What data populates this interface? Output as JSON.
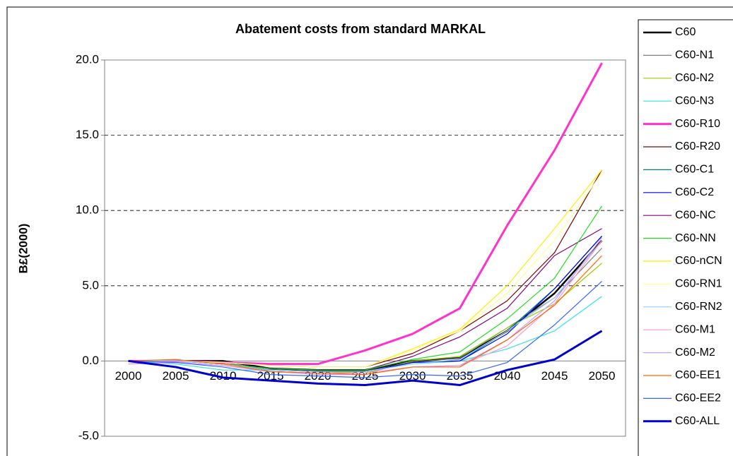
{
  "chart_data": {
    "type": "line",
    "title": "Abatement costs from standard MARKAL",
    "y_label": "B£(2000)",
    "categories": [
      "2000",
      "2005",
      "2010",
      "2015",
      "2020",
      "2025",
      "2030",
      "2035",
      "2040",
      "2045",
      "2050"
    ],
    "ylim": [
      -5,
      20
    ],
    "yticks": [
      {
        "value": -5,
        "label": "-5.0"
      },
      {
        "value": 0,
        "label": "0.0"
      },
      {
        "value": 5,
        "label": "5.0"
      },
      {
        "value": 10,
        "label": "10.0"
      },
      {
        "value": 15,
        "label": "15.0"
      },
      {
        "value": 20,
        "label": "20.0"
      }
    ],
    "grid": true,
    "legend": "right",
    "series": [
      {
        "name": "C60",
        "color": "#000000",
        "line_width": 2.5,
        "values": [
          0,
          0,
          0,
          -0.5,
          -0.6,
          -0.6,
          0,
          0.2,
          2,
          4.5,
          8
        ]
      },
      {
        "name": "C60-N1",
        "color": "#808080",
        "line_width": 1.2,
        "values": [
          0,
          0,
          -0.1,
          -0.6,
          -0.7,
          -0.8,
          -0.1,
          0.2,
          2.2,
          4.2,
          7.5
        ]
      },
      {
        "name": "C60-N2",
        "color": "#99cc00",
        "line_width": 1.2,
        "values": [
          0,
          0,
          -0.2,
          -0.6,
          -0.7,
          -0.8,
          0,
          0.3,
          2.2,
          3.8,
          6.5
        ]
      },
      {
        "name": "C60-N3",
        "color": "#33e0f0",
        "line_width": 1.2,
        "values": [
          0,
          -0.2,
          -0.6,
          -0.6,
          -0.7,
          -0.7,
          -0.2,
          0,
          0.8,
          2,
          4.3
        ]
      },
      {
        "name": "C60-R10",
        "color": "#ff33cc",
        "line_width": 3,
        "values": [
          0,
          0,
          -0.1,
          -0.2,
          -0.2,
          0.7,
          1.8,
          3.5,
          9,
          14,
          19.8
        ]
      },
      {
        "name": "C60-R20",
        "color": "#800000",
        "line_width": 1.2,
        "values": [
          0,
          0,
          -0.1,
          -0.3,
          -0.4,
          -0.4,
          0.5,
          2,
          4,
          7.2,
          12.7
        ]
      },
      {
        "name": "C60-C1",
        "color": "#008080",
        "line_width": 1.2,
        "values": [
          0,
          0,
          -0.2,
          -0.6,
          -0.7,
          -0.7,
          -0.1,
          0,
          2,
          4.8,
          8.3
        ]
      },
      {
        "name": "C60-C2",
        "color": "#0000ff",
        "line_width": 1.2,
        "values": [
          0,
          0,
          -0.2,
          -0.6,
          -0.7,
          -0.7,
          -0.1,
          0,
          1.8,
          4.8,
          8.3
        ]
      },
      {
        "name": "C60-NC",
        "color": "#800080",
        "line_width": 1.2,
        "values": [
          0,
          0,
          -0.2,
          -0.5,
          -0.6,
          -0.6,
          0.3,
          1.6,
          3.5,
          7,
          8.8
        ]
      },
      {
        "name": "C60-NN",
        "color": "#22dd22",
        "line_width": 1.2,
        "values": [
          0,
          0,
          -0.2,
          -0.5,
          -0.6,
          -0.6,
          0.1,
          0.6,
          2.8,
          5.5,
          10.3
        ]
      },
      {
        "name": "C60-nCN",
        "color": "#ffee00",
        "line_width": 1.2,
        "values": [
          0,
          0,
          -0.1,
          -0.3,
          -0.4,
          -0.4,
          0.8,
          2.1,
          5,
          8.8,
          12.7
        ]
      },
      {
        "name": "C60-RN1",
        "color": "#ffff99",
        "line_width": 1.2,
        "values": [
          0,
          0,
          -0.1,
          -0.3,
          -0.4,
          -0.4,
          0.7,
          2,
          4.5,
          8,
          12.5
        ]
      },
      {
        "name": "C60-RN2",
        "color": "#99ccff",
        "line_width": 1.2,
        "values": [
          0,
          0,
          -0.2,
          -0.6,
          -0.7,
          -0.7,
          -0.2,
          0.1,
          2,
          4.2,
          8
        ]
      },
      {
        "name": "C60-M1",
        "color": "#ff99cc",
        "line_width": 1.2,
        "values": [
          -0.2,
          -0.1,
          -0.3,
          -0.7,
          -0.8,
          -0.8,
          -0.4,
          -0.3,
          1,
          3.8,
          8
        ]
      },
      {
        "name": "C60-M2",
        "color": "#cc99ff",
        "line_width": 1.2,
        "values": [
          -0.2,
          -0.1,
          -0.3,
          -0.7,
          -0.9,
          -0.9,
          -0.4,
          -0.3,
          1.4,
          4,
          8.2
        ]
      },
      {
        "name": "C60-EE1",
        "color": "#ff6600",
        "line_width": 1.2,
        "values": [
          0,
          0.1,
          -0.2,
          -0.7,
          -0.8,
          -0.9,
          -0.4,
          -0.4,
          1.4,
          3.7,
          7
        ]
      },
      {
        "name": "C60-EE2",
        "color": "#3366ff",
        "line_width": 1.2,
        "values": [
          0,
          -0.1,
          -0.4,
          -0.9,
          -1.0,
          -1.1,
          -0.9,
          -1.0,
          -0.1,
          2.4,
          5.3
        ]
      },
      {
        "name": "C60-ALL",
        "color": "#0000cc",
        "line_width": 3,
        "values": [
          0,
          -0.4,
          -1.1,
          -1.3,
          -1.5,
          -1.6,
          -1.3,
          -1.6,
          -0.6,
          0.1,
          2
        ]
      }
    ]
  }
}
